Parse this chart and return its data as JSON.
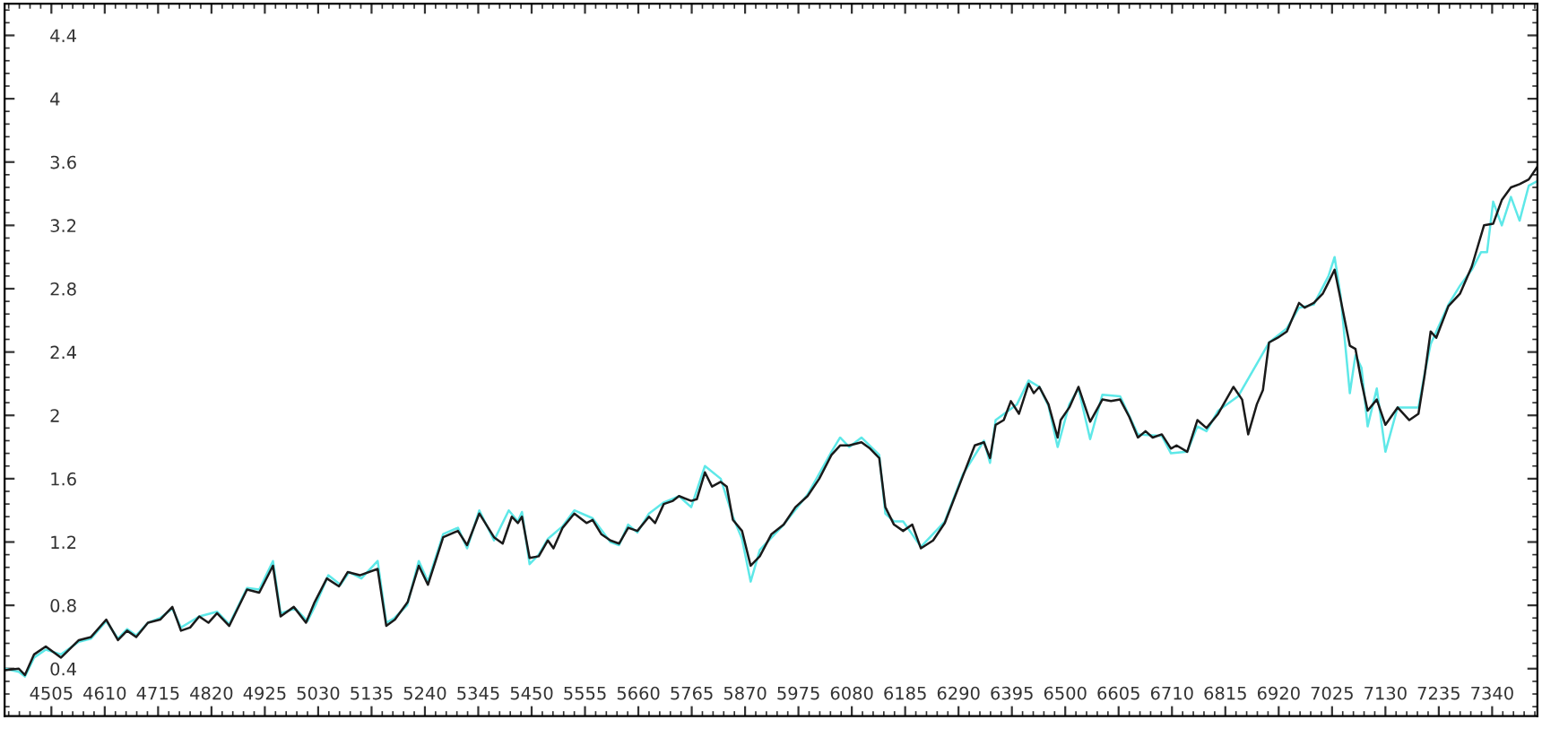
{
  "chart_data": {
    "type": "line",
    "xlim": [
      4413,
      7429
    ],
    "ylim": [
      0.1,
      4.6
    ],
    "xticks": [
      4505,
      4610,
      4715,
      4820,
      4925,
      5030,
      5135,
      5240,
      5345,
      5450,
      5555,
      5660,
      5765,
      5870,
      5975,
      6080,
      6185,
      6290,
      6395,
      6500,
      6605,
      6710,
      6815,
      6920,
      7025,
      7130,
      7235,
      7340
    ],
    "yticks": [
      0.4,
      0.8,
      1.2,
      1.6,
      2,
      2.4,
      2.8,
      3.2,
      3.6,
      4,
      4.4
    ],
    "grid": false,
    "legend": false,
    "marker": "none",
    "line_style": "solid",
    "series": [
      {
        "color": "#5ee8e8",
        "x": [
          4413,
          4441,
          4453,
          4471,
          4494,
          4524,
          4559,
          4583,
          4613,
          4636,
          4654,
          4672,
          4695,
          4719,
          4743,
          4760,
          4796,
          4831,
          4855,
          4890,
          4914,
          4941,
          4956,
          4985,
          5009,
          5026,
          5050,
          5074,
          5091,
          5115,
          5147,
          5164,
          5180,
          5205,
          5228,
          5246,
          5276,
          5305,
          5323,
          5347,
          5376,
          5405,
          5423,
          5431,
          5446,
          5464,
          5482,
          5511,
          5534,
          5570,
          5605,
          5622,
          5640,
          5658,
          5681,
          5710,
          5740,
          5764,
          5791,
          5822,
          5846,
          5864,
          5881,
          5899,
          5946,
          5993,
          6040,
          6057,
          6075,
          6099,
          6134,
          6146,
          6163,
          6181,
          6216,
          6263,
          6299,
          6340,
          6352,
          6363,
          6405,
          6428,
          6449,
          6467,
          6485,
          6508,
          6526,
          6549,
          6573,
          6608,
          6643,
          6690,
          6708,
          6740,
          6760,
          6778,
          6801,
          6840,
          6901,
          6936,
          6960,
          6989,
          7018,
          7030,
          7042,
          7060,
          7071,
          7083,
          7095,
          7113,
          7130,
          7154,
          7195,
          7207,
          7219,
          7254,
          7277,
          7300,
          7318,
          7330,
          7342,
          7359,
          7377,
          7394,
          7412,
          7429
        ],
        "values": [
          0.4,
          0.38,
          0.35,
          0.47,
          0.52,
          0.49,
          0.57,
          0.59,
          0.7,
          0.59,
          0.65,
          0.61,
          0.69,
          0.72,
          0.78,
          0.66,
          0.73,
          0.76,
          0.68,
          0.91,
          0.9,
          1.08,
          0.75,
          0.78,
          0.7,
          0.81,
          0.99,
          0.93,
          1.01,
          0.97,
          1.08,
          0.69,
          0.72,
          0.8,
          1.08,
          0.95,
          1.25,
          1.29,
          1.16,
          1.4,
          1.21,
          1.4,
          1.33,
          1.39,
          1.06,
          1.12,
          1.22,
          1.3,
          1.4,
          1.35,
          1.2,
          1.18,
          1.31,
          1.26,
          1.38,
          1.45,
          1.49,
          1.42,
          1.68,
          1.6,
          1.36,
          1.22,
          0.95,
          1.15,
          1.31,
          1.5,
          1.77,
          1.86,
          1.8,
          1.86,
          1.75,
          1.38,
          1.33,
          1.33,
          1.17,
          1.33,
          1.63,
          1.84,
          1.7,
          1.97,
          2.07,
          2.22,
          2.18,
          2.06,
          1.8,
          2.07,
          2.17,
          1.85,
          2.13,
          2.12,
          1.88,
          1.87,
          1.76,
          1.77,
          1.93,
          1.9,
          2.03,
          2.12,
          2.46,
          2.55,
          2.68,
          2.7,
          2.88,
          3.0,
          2.75,
          2.14,
          2.38,
          2.3,
          1.93,
          2.17,
          1.77,
          2.05,
          2.05,
          2.26,
          2.45,
          2.7,
          2.82,
          2.92,
          3.03,
          3.03,
          3.35,
          3.2,
          3.38,
          3.23,
          3.45,
          3.48
        ]
      },
      {
        "color": "#1a1a1a",
        "x": [
          4413,
          4441,
          4453,
          4471,
          4494,
          4524,
          4559,
          4583,
          4613,
          4636,
          4654,
          4672,
          4695,
          4719,
          4743,
          4760,
          4778,
          4796,
          4814,
          4831,
          4855,
          4890,
          4914,
          4941,
          4956,
          4982,
          5006,
          5023,
          5047,
          5071,
          5088,
          5112,
          5147,
          5164,
          5181,
          5206,
          5228,
          5246,
          5276,
          5305,
          5323,
          5347,
          5376,
          5393,
          5411,
          5423,
          5431,
          5446,
          5464,
          5482,
          5493,
          5511,
          5534,
          5558,
          5570,
          5587,
          5605,
          5622,
          5640,
          5658,
          5681,
          5693,
          5710,
          5728,
          5740,
          5764,
          5775,
          5791,
          5805,
          5822,
          5834,
          5846,
          5864,
          5881,
          5899,
          5922,
          5946,
          5969,
          5993,
          6016,
          6040,
          6057,
          6075,
          6099,
          6116,
          6134,
          6146,
          6163,
          6181,
          6199,
          6216,
          6240,
          6263,
          6281,
          6299,
          6322,
          6340,
          6352,
          6363,
          6379,
          6393,
          6409,
          6428,
          6438,
          6449,
          6467,
          6485,
          6491,
          6508,
          6526,
          6549,
          6573,
          6590,
          6608,
          6626,
          6643,
          6658,
          6672,
          6690,
          6708,
          6719,
          6740,
          6760,
          6778,
          6801,
          6831,
          6848,
          6860,
          6877,
          6889,
          6901,
          6918,
          6936,
          6960,
          6971,
          6989,
          7007,
          7018,
          7030,
          7042,
          7060,
          7071,
          7083,
          7095,
          7113,
          7130,
          7154,
          7177,
          7195,
          7207,
          7219,
          7230,
          7254,
          7277,
          7300,
          7324,
          7342,
          7359,
          7377,
          7394,
          7412,
          7429
        ],
        "values": [
          0.39,
          0.4,
          0.36,
          0.49,
          0.54,
          0.47,
          0.58,
          0.6,
          0.71,
          0.58,
          0.64,
          0.6,
          0.69,
          0.71,
          0.79,
          0.64,
          0.66,
          0.73,
          0.69,
          0.75,
          0.67,
          0.9,
          0.88,
          1.05,
          0.73,
          0.79,
          0.69,
          0.82,
          0.97,
          0.92,
          1.01,
          0.99,
          1.03,
          0.67,
          0.71,
          0.82,
          1.05,
          0.93,
          1.23,
          1.27,
          1.18,
          1.38,
          1.23,
          1.19,
          1.36,
          1.32,
          1.36,
          1.1,
          1.11,
          1.21,
          1.16,
          1.29,
          1.38,
          1.32,
          1.34,
          1.25,
          1.21,
          1.19,
          1.29,
          1.27,
          1.36,
          1.32,
          1.44,
          1.46,
          1.49,
          1.46,
          1.47,
          1.64,
          1.55,
          1.58,
          1.55,
          1.34,
          1.27,
          1.05,
          1.11,
          1.25,
          1.31,
          1.42,
          1.49,
          1.6,
          1.75,
          1.81,
          1.81,
          1.83,
          1.79,
          1.73,
          1.42,
          1.31,
          1.27,
          1.31,
          1.16,
          1.21,
          1.32,
          1.47,
          1.62,
          1.81,
          1.83,
          1.73,
          1.94,
          1.97,
          2.09,
          2.01,
          2.2,
          2.14,
          2.18,
          2.07,
          1.86,
          1.97,
          2.05,
          2.18,
          1.96,
          2.1,
          2.09,
          2.1,
          1.99,
          1.86,
          1.9,
          1.86,
          1.88,
          1.79,
          1.81,
          1.77,
          1.97,
          1.92,
          2.01,
          2.18,
          2.1,
          1.88,
          2.07,
          2.16,
          2.46,
          2.49,
          2.53,
          2.71,
          2.68,
          2.71,
          2.77,
          2.84,
          2.92,
          2.73,
          2.44,
          2.42,
          2.21,
          2.03,
          2.1,
          1.94,
          2.05,
          1.97,
          2.01,
          2.25,
          2.53,
          2.49,
          2.69,
          2.77,
          2.94,
          3.2,
          3.21,
          3.36,
          3.44,
          3.46,
          3.49,
          3.57
        ]
      }
    ]
  }
}
